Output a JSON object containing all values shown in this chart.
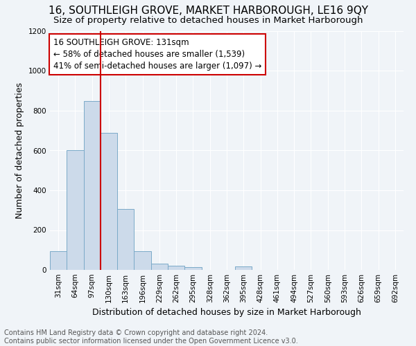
{
  "title": "16, SOUTHLEIGH GROVE, MARKET HARBOROUGH, LE16 9QY",
  "subtitle": "Size of property relative to detached houses in Market Harborough",
  "xlabel": "Distribution of detached houses by size in Market Harborough",
  "ylabel": "Number of detached properties",
  "categories": [
    "31sqm",
    "64sqm",
    "97sqm",
    "130sqm",
    "163sqm",
    "196sqm",
    "229sqm",
    "262sqm",
    "295sqm",
    "328sqm",
    "362sqm",
    "395sqm",
    "428sqm",
    "461sqm",
    "494sqm",
    "527sqm",
    "560sqm",
    "593sqm",
    "626sqm",
    "659sqm",
    "692sqm"
  ],
  "values": [
    95,
    600,
    850,
    690,
    305,
    95,
    32,
    20,
    15,
    0,
    0,
    18,
    0,
    0,
    0,
    0,
    0,
    0,
    0,
    0,
    0
  ],
  "bar_color": "#ccdaea",
  "bar_edge_color": "#7aaac8",
  "highlight_bar_index": 3,
  "highlight_line_color": "#cc0000",
  "annotation_text": "16 SOUTHLEIGH GROVE: 131sqm\n← 58% of detached houses are smaller (1,539)\n41% of semi-detached houses are larger (1,097) →",
  "annotation_box_color": "#ffffff",
  "annotation_box_edge_color": "#cc0000",
  "ylim": [
    0,
    1200
  ],
  "yticks": [
    0,
    200,
    400,
    600,
    800,
    1000,
    1200
  ],
  "footer_line1": "Contains HM Land Registry data © Crown copyright and database right 2024.",
  "footer_line2": "Contains public sector information licensed under the Open Government Licence v3.0.",
  "background_color": "#f0f4f8",
  "grid_color": "#ffffff",
  "title_fontsize": 11,
  "subtitle_fontsize": 9.5,
  "axis_label_fontsize": 9,
  "tick_fontsize": 7.5,
  "footer_fontsize": 7,
  "annotation_fontsize": 8.5
}
